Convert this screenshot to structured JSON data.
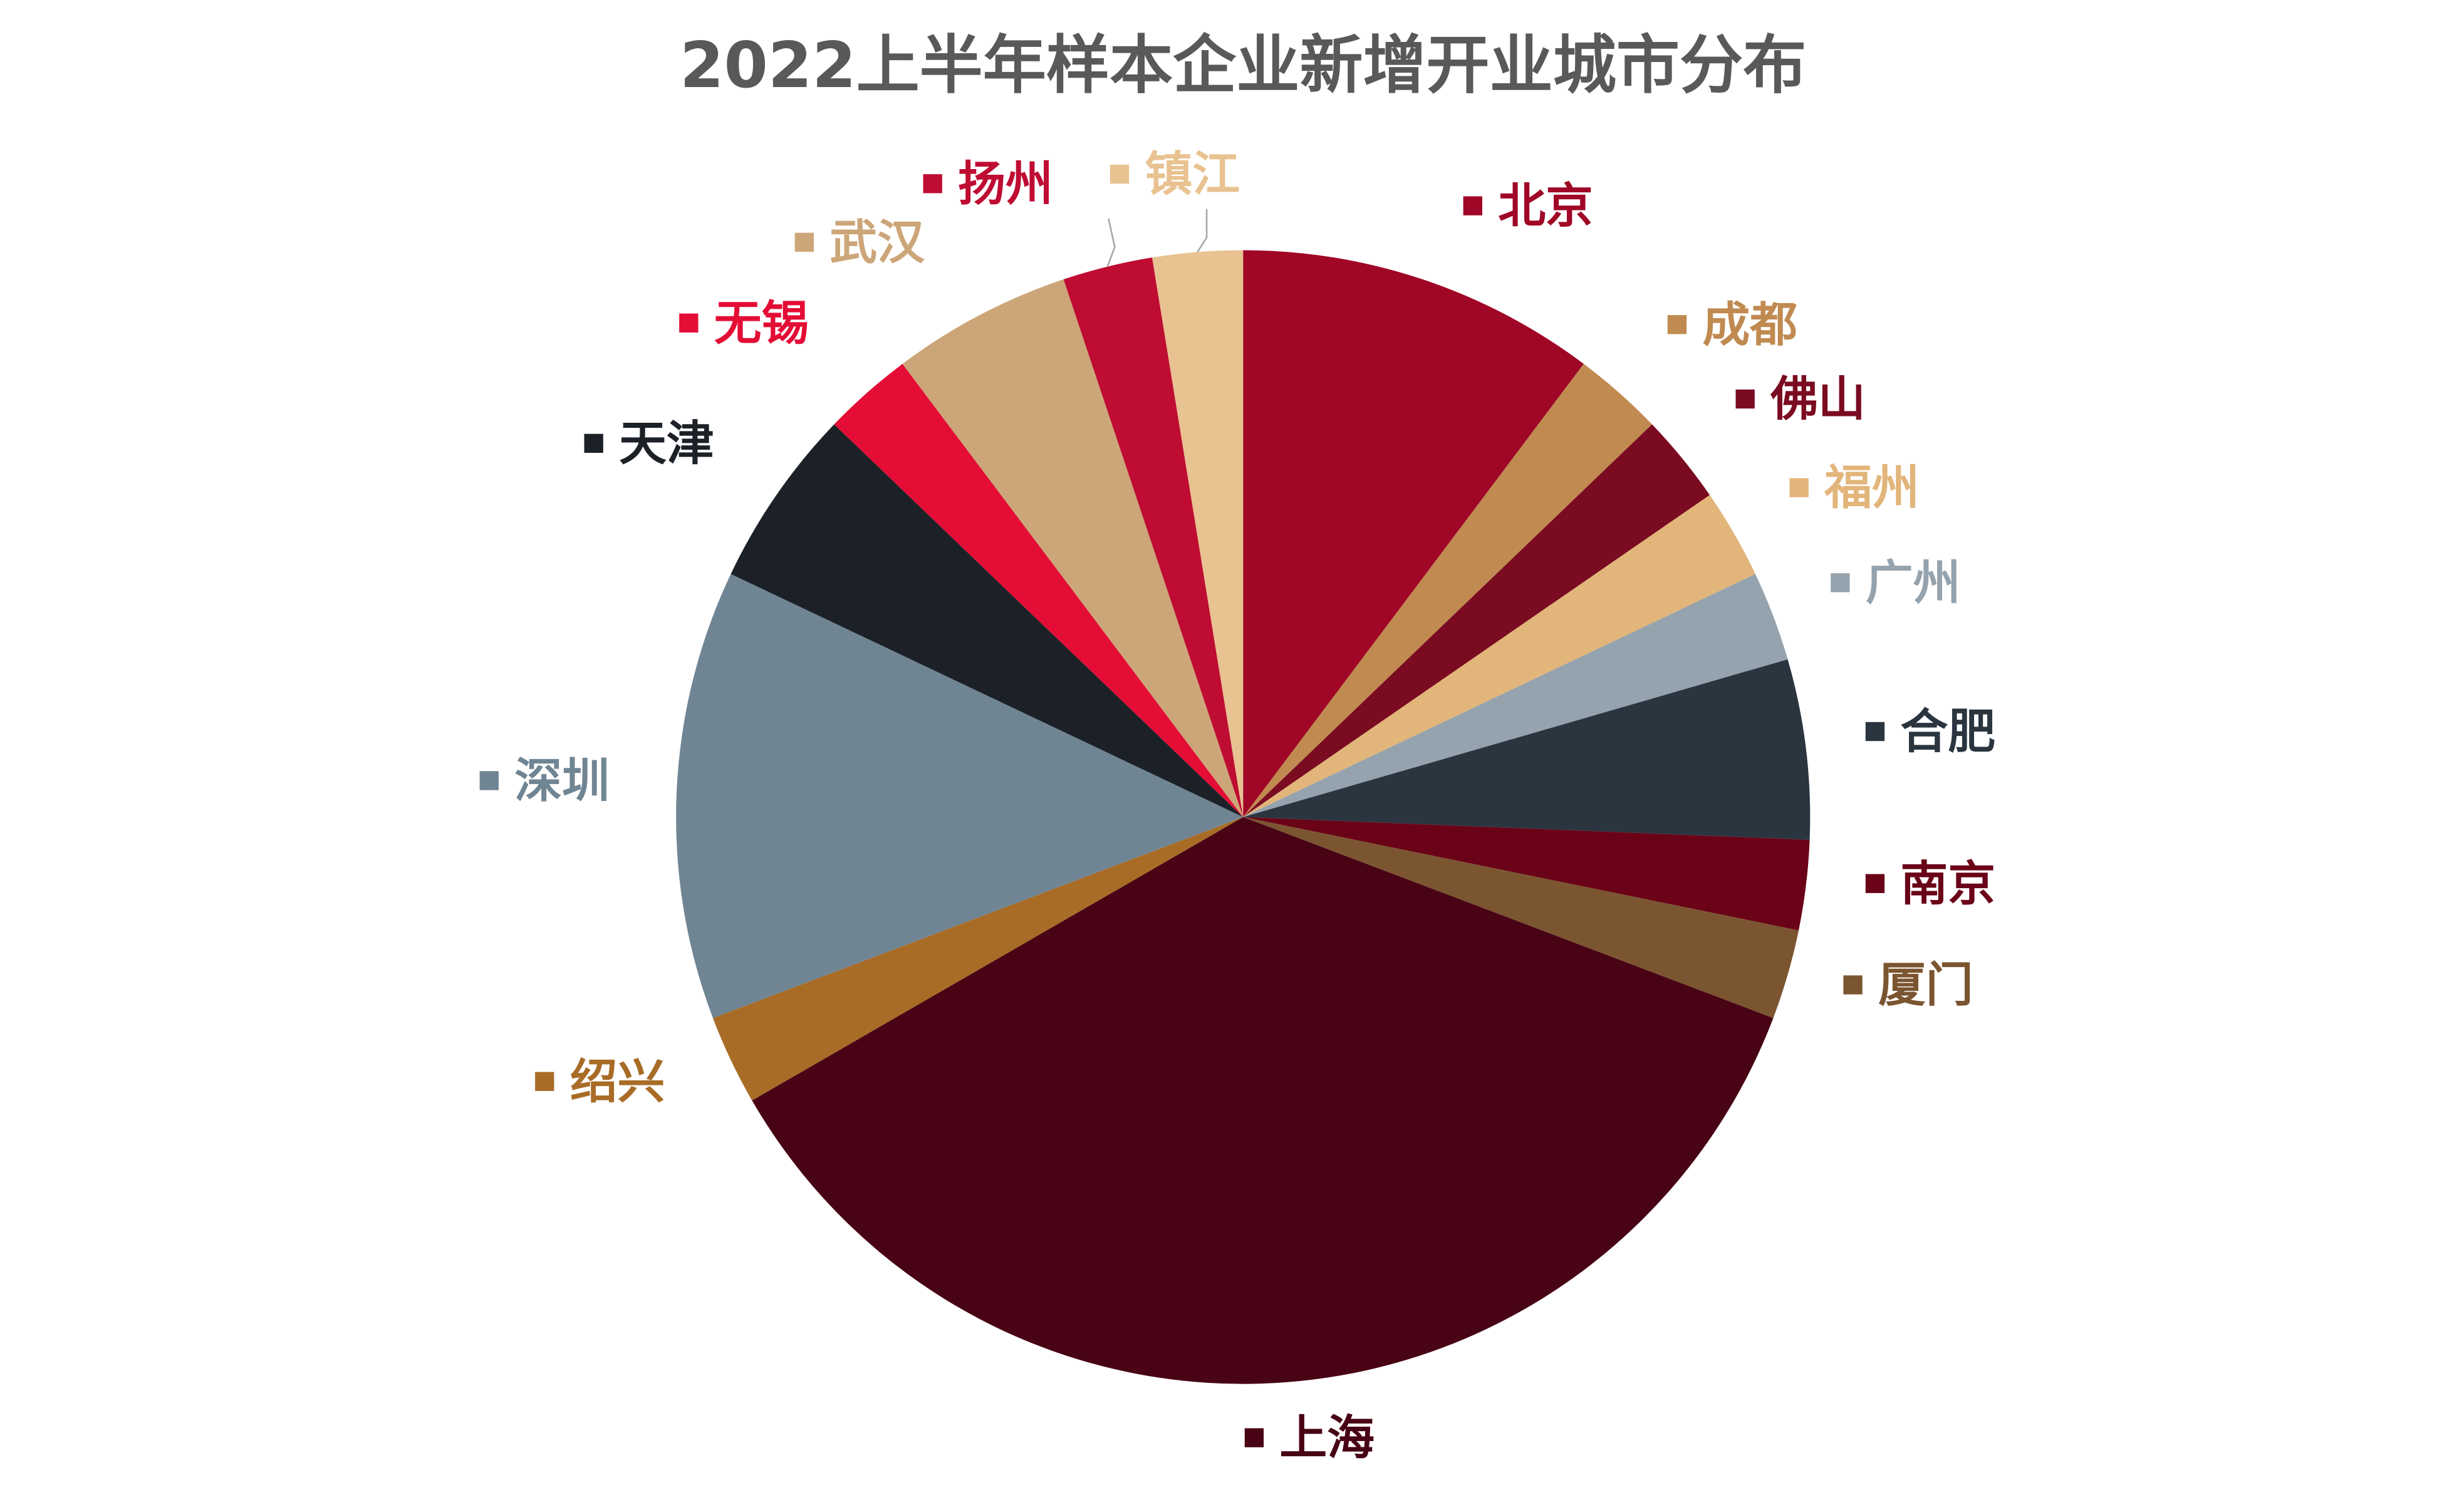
{
  "chart_data": {
    "type": "pie",
    "title": "2022上半年样本企业新增开业城市分布",
    "categories": [
      "北京",
      "成都",
      "佛山",
      "福州",
      "广州",
      "合肥",
      "南京",
      "厦门",
      "上海",
      "绍兴",
      "深圳",
      "天津",
      "无锡",
      "武汉",
      "扬州",
      "镇江"
    ],
    "values": [
      4,
      1,
      1,
      1,
      1,
      2,
      1,
      1,
      14,
      1,
      5,
      2,
      1,
      2,
      1,
      1
    ],
    "colors": [
      "#a00626",
      "#c08a51",
      "#7a0b20",
      "#e2b57a",
      "#95a3ae",
      "#2a3540",
      "#6a0317",
      "#7b5530",
      "#480415",
      "#a86c27",
      "#708594",
      "#1c2127",
      "#e40d35",
      "#cca678",
      "#bf0c32",
      "#e8c290"
    ]
  }
}
